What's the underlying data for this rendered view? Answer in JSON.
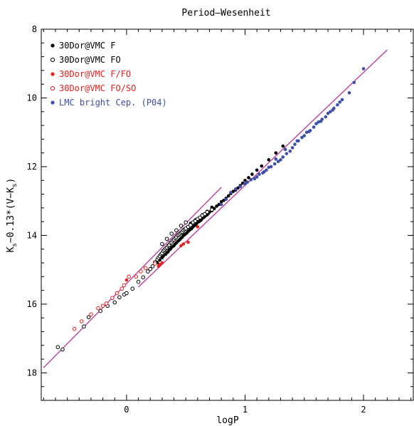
{
  "chart_data": {
    "type": "scatter",
    "title": "Period–Wesenheit",
    "xlabel": "logP",
    "ylabel_main": "K",
    "ylabel_sub1": "s",
    "ylabel_mid": "−0.13*(V−K",
    "ylabel_sub2": "s",
    "ylabel_end": ")",
    "xlim": [
      -0.72,
      2.42
    ],
    "ylim": [
      18.8,
      8.0
    ],
    "y_inverted": true,
    "grid": false,
    "legend_position": "top-left",
    "x_ticks": [
      0,
      1,
      2
    ],
    "x_tick_labels": [
      "0",
      "1",
      "2"
    ],
    "y_ticks": [
      8,
      10,
      12,
      14,
      16,
      18
    ],
    "y_tick_labels": [
      "8",
      "10",
      "12",
      "14",
      "16",
      "18"
    ],
    "legend": [
      {
        "label": "30Dor@VMC F",
        "color": "#000000",
        "marker": "filled"
      },
      {
        "label": "30Dor@VMC FO",
        "color": "#000000",
        "marker": "open"
      },
      {
        "label": "30Dor@VMC F/FO",
        "color": "#e8201e",
        "marker": "filled"
      },
      {
        "label": "30Dor@VMC FO/SO",
        "color": "#e8201e",
        "marker": "open"
      },
      {
        "label": "LMC bright Cep. (P04)",
        "color": "#3d4fa8",
        "marker": "filled"
      }
    ],
    "fit_lines": [
      {
        "color": "#c040a0",
        "x": [
          -0.7,
          0.8
        ],
        "y": [
          17.85,
          12.6
        ]
      },
      {
        "color": "#c040a0",
        "x": [
          0.1,
          2.2
        ],
        "y": [
          15.5,
          8.6
        ]
      }
    ],
    "series": [
      {
        "name": "30Dor@VMC F",
        "color": "#000000",
        "marker": "filled",
        "x": [
          0.26,
          0.28,
          0.3,
          0.31,
          0.33,
          0.34,
          0.35,
          0.36,
          0.37,
          0.38,
          0.39,
          0.4,
          0.41,
          0.42,
          0.43,
          0.44,
          0.45,
          0.46,
          0.47,
          0.48,
          0.49,
          0.5,
          0.51,
          0.52,
          0.53,
          0.54,
          0.55,
          0.56,
          0.57,
          0.58,
          0.59,
          0.6,
          0.61,
          0.62,
          0.63,
          0.64,
          0.65,
          0.66,
          0.67,
          0.68,
          0.69,
          0.7,
          0.72,
          0.74,
          0.76,
          0.78,
          0.8,
          0.82,
          0.84,
          0.86,
          0.88,
          0.9,
          0.92,
          0.94,
          0.96,
          0.98,
          1.0,
          1.03,
          1.06,
          1.1,
          1.14,
          1.2,
          1.26,
          1.32,
          0.36,
          0.42,
          0.48,
          0.54,
          0.58,
          0.64,
          0.68,
          0.72
        ],
        "y": [
          14.8,
          14.72,
          14.65,
          14.6,
          14.55,
          14.5,
          14.48,
          14.42,
          14.4,
          14.35,
          14.32,
          14.3,
          14.25,
          14.22,
          14.18,
          14.15,
          14.12,
          14.08,
          14.05,
          14.0,
          13.98,
          13.95,
          13.92,
          13.88,
          13.85,
          13.82,
          13.8,
          13.75,
          13.72,
          13.7,
          13.66,
          13.62,
          13.6,
          13.58,
          13.55,
          13.5,
          13.48,
          13.45,
          13.42,
          13.4,
          13.36,
          13.32,
          13.28,
          13.22,
          13.15,
          13.1,
          13.02,
          12.98,
          12.92,
          12.85,
          12.78,
          12.72,
          12.68,
          12.62,
          12.55,
          12.48,
          12.4,
          12.32,
          12.22,
          12.1,
          11.98,
          11.8,
          11.6,
          11.4,
          14.3,
          14.05,
          13.85,
          13.65,
          13.55,
          13.4,
          13.3,
          13.18
        ]
      },
      {
        "name": "30Dor@VMC FO",
        "color": "#000000",
        "marker": "open",
        "x": [
          -0.58,
          -0.54,
          -0.36,
          -0.32,
          -0.22,
          -0.16,
          -0.1,
          -0.06,
          -0.02,
          0.0,
          0.05,
          0.1,
          0.14,
          0.18,
          0.2,
          0.22,
          0.24,
          0.26,
          0.27,
          0.28,
          0.29,
          0.3,
          0.31,
          0.32,
          0.33,
          0.34,
          0.35,
          0.36,
          0.37,
          0.38,
          0.39,
          0.4,
          0.41,
          0.42,
          0.43,
          0.44,
          0.45,
          0.46,
          0.47,
          0.48,
          0.49,
          0.5,
          0.52,
          0.54,
          0.56,
          0.58,
          0.6,
          0.62,
          0.64,
          0.66,
          0.68,
          0.72,
          0.3,
          0.34,
          0.38,
          0.42,
          0.46,
          0.5
        ],
        "y": [
          17.25,
          17.32,
          16.65,
          16.38,
          16.2,
          16.05,
          15.95,
          15.8,
          15.72,
          15.68,
          15.55,
          15.35,
          15.22,
          15.05,
          14.98,
          14.9,
          14.78,
          14.7,
          14.65,
          14.6,
          14.55,
          14.52,
          14.45,
          14.42,
          14.38,
          14.35,
          14.3,
          14.28,
          14.22,
          14.2,
          14.15,
          14.12,
          14.08,
          14.05,
          14.0,
          13.98,
          13.95,
          13.92,
          13.9,
          13.85,
          13.82,
          13.8,
          13.75,
          13.7,
          13.62,
          13.58,
          13.52,
          13.48,
          13.42,
          13.38,
          13.32,
          13.25,
          14.25,
          14.1,
          13.95,
          13.85,
          13.72,
          13.62
        ]
      },
      {
        "name": "30Dor@VMC F/FO",
        "color": "#e8201e",
        "marker": "filled",
        "x": [
          0.0,
          0.27,
          0.28,
          0.3,
          0.46,
          0.48,
          0.52,
          0.6
        ],
        "y": [
          15.3,
          14.9,
          14.85,
          14.8,
          14.3,
          14.25,
          14.2,
          13.75
        ]
      },
      {
        "name": "30Dor@VMC FO/SO",
        "color": "#e8201e",
        "marker": "open",
        "x": [
          -0.44,
          -0.38,
          -0.3,
          -0.24,
          -0.2,
          -0.17,
          -0.12,
          -0.08,
          -0.04,
          -0.02,
          0.02,
          0.08,
          0.12,
          0.16,
          0.24
        ],
        "y": [
          16.72,
          16.5,
          16.3,
          16.12,
          16.05,
          15.98,
          15.82,
          15.68,
          15.55,
          15.45,
          15.2,
          15.2,
          15.05,
          14.95,
          14.82
        ]
      },
      {
        "name": "LMC bright Cep. (P04)",
        "color": "#3d4fa8",
        "marker": "filled",
        "x": [
          0.88,
          0.92,
          0.96,
          1.0,
          1.02,
          1.05,
          1.08,
          1.1,
          1.12,
          1.15,
          1.18,
          1.2,
          1.22,
          1.25,
          1.28,
          1.3,
          1.32,
          1.35,
          1.38,
          1.4,
          1.42,
          1.45,
          1.48,
          1.5,
          1.52,
          1.55,
          1.58,
          1.6,
          1.62,
          1.65,
          1.68,
          1.7,
          1.72,
          1.75,
          1.78,
          1.8,
          1.82,
          1.88,
          1.92,
          2.0,
          1.26,
          1.34,
          1.44,
          1.54,
          1.64,
          1.74,
          0.8,
          0.84,
          1.16
        ],
        "y": [
          12.75,
          12.65,
          12.58,
          12.5,
          12.45,
          12.38,
          12.35,
          12.3,
          12.22,
          12.18,
          12.1,
          12.02,
          12.0,
          11.92,
          11.85,
          11.8,
          11.72,
          11.62,
          11.55,
          11.45,
          11.35,
          11.25,
          11.15,
          11.1,
          11.0,
          10.95,
          10.85,
          10.75,
          10.7,
          10.62,
          10.55,
          10.45,
          10.4,
          10.3,
          10.2,
          10.12,
          10.05,
          9.85,
          9.55,
          9.15,
          11.78,
          11.5,
          11.25,
          10.98,
          10.68,
          10.35,
          13.1,
          12.95,
          12.15
        ]
      }
    ]
  }
}
